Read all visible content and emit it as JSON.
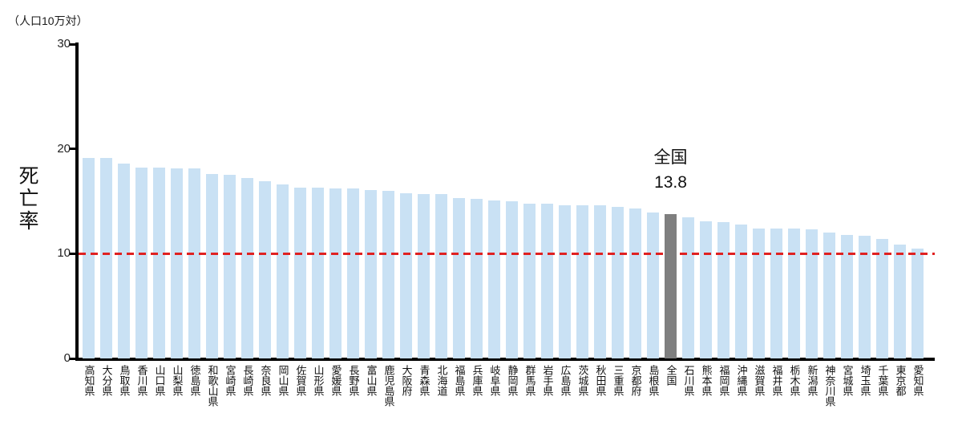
{
  "unit_label": "（人口10万対）",
  "y_axis": {
    "title": "死亡率",
    "tick_values": [
      30,
      20,
      10,
      0
    ]
  },
  "annotation": {
    "label": "全国",
    "value": "13.8"
  },
  "colors": {
    "bar": "#c9e1f4",
    "highlight_bar": "#7f7f7f",
    "reference_line": "#e02121",
    "axis": "#000000",
    "text": "#1a1a1a"
  },
  "chart_data": {
    "type": "bar",
    "title": "",
    "ylabel": "死亡率",
    "unit": "（人口10万対）",
    "ylim": [
      0,
      30
    ],
    "yticks": [
      30,
      20,
      10,
      0
    ],
    "grid": false,
    "legend": false,
    "reference_line": {
      "value": 10,
      "color": "#e02121",
      "style": "dashed"
    },
    "highlight": {
      "category": "全国",
      "value": 13.8,
      "color": "#7f7f7f",
      "annotation_lines": [
        "全国",
        "13.8"
      ]
    },
    "bar_color": "#c9e1f4",
    "categories": [
      "高知県",
      "大分県",
      "鳥取県",
      "香川県",
      "山口県",
      "山梨県",
      "徳島県",
      "和歌山県",
      "宮崎県",
      "長崎県",
      "奈良県",
      "岡山県",
      "佐賀県",
      "山形県",
      "愛媛県",
      "長野県",
      "富山県",
      "鹿児島県",
      "大阪府",
      "青森県",
      "北海道",
      "福島県",
      "兵庫県",
      "岐阜県",
      "静岡県",
      "群馬県",
      "岩手県",
      "広島県",
      "茨城県",
      "秋田県",
      "三重県",
      "京都府",
      "島根県",
      "全国",
      "石川県",
      "熊本県",
      "福岡県",
      "沖縄県",
      "滋賀県",
      "福井県",
      "栃木県",
      "新潟県",
      "神奈川県",
      "宮城県",
      "埼玉県",
      "千葉県",
      "東京都",
      "愛知県"
    ],
    "values": [
      19.1,
      19.1,
      18.6,
      18.2,
      18.2,
      18.1,
      18.1,
      17.6,
      17.5,
      17.2,
      16.9,
      16.6,
      16.3,
      16.3,
      16.2,
      16.2,
      16.1,
      16.0,
      15.8,
      15.7,
      15.7,
      15.3,
      15.2,
      15.1,
      15.0,
      14.8,
      14.8,
      14.6,
      14.6,
      14.6,
      14.5,
      14.3,
      13.9,
      13.8,
      13.5,
      13.1,
      13.0,
      12.8,
      12.4,
      12.4,
      12.4,
      12.3,
      12.0,
      11.8,
      11.7,
      11.4,
      10.9,
      10.5
    ]
  }
}
